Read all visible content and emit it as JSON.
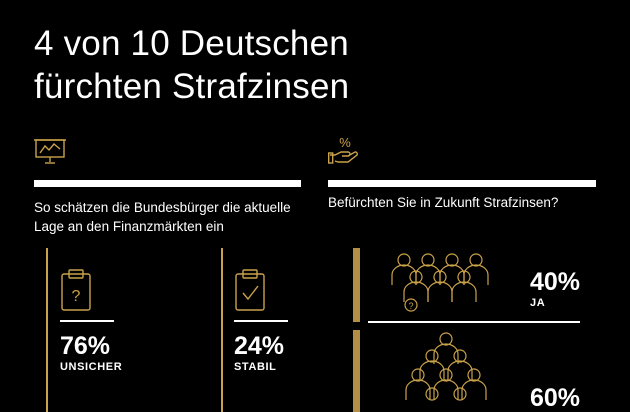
{
  "title": {
    "line1": "4 von 10 Deutschen",
    "line2": "fürchten Strafzinsen"
  },
  "left_panel": {
    "icon": "chart-easel-icon",
    "question_line1": "So schätzen die Bundesbürger die aktuelle",
    "question_line2": "Lage an den Finanzmärkten ein",
    "stats": [
      {
        "icon": "clipboard-question-icon",
        "value": "76%",
        "label": "UNSICHER",
        "fraction": 0.76
      },
      {
        "icon": "clipboard-check-icon",
        "value": "24%",
        "label": "STABIL",
        "fraction": 0.24
      }
    ]
  },
  "right_panel": {
    "icon": "percent-hand-icon",
    "question": "Befürchten Sie in Zukunft Strafzinsen?",
    "stats": [
      {
        "icon": "people-group-question-icon",
        "value": "40%",
        "label": "JA",
        "fraction": 0.4
      },
      {
        "icon": "people-group-icon",
        "value": "60%",
        "label": "",
        "fraction": 0.6
      }
    ]
  },
  "colors": {
    "background": "#000000",
    "text": "#ffffff",
    "accent_gold": "#c9a24a"
  }
}
